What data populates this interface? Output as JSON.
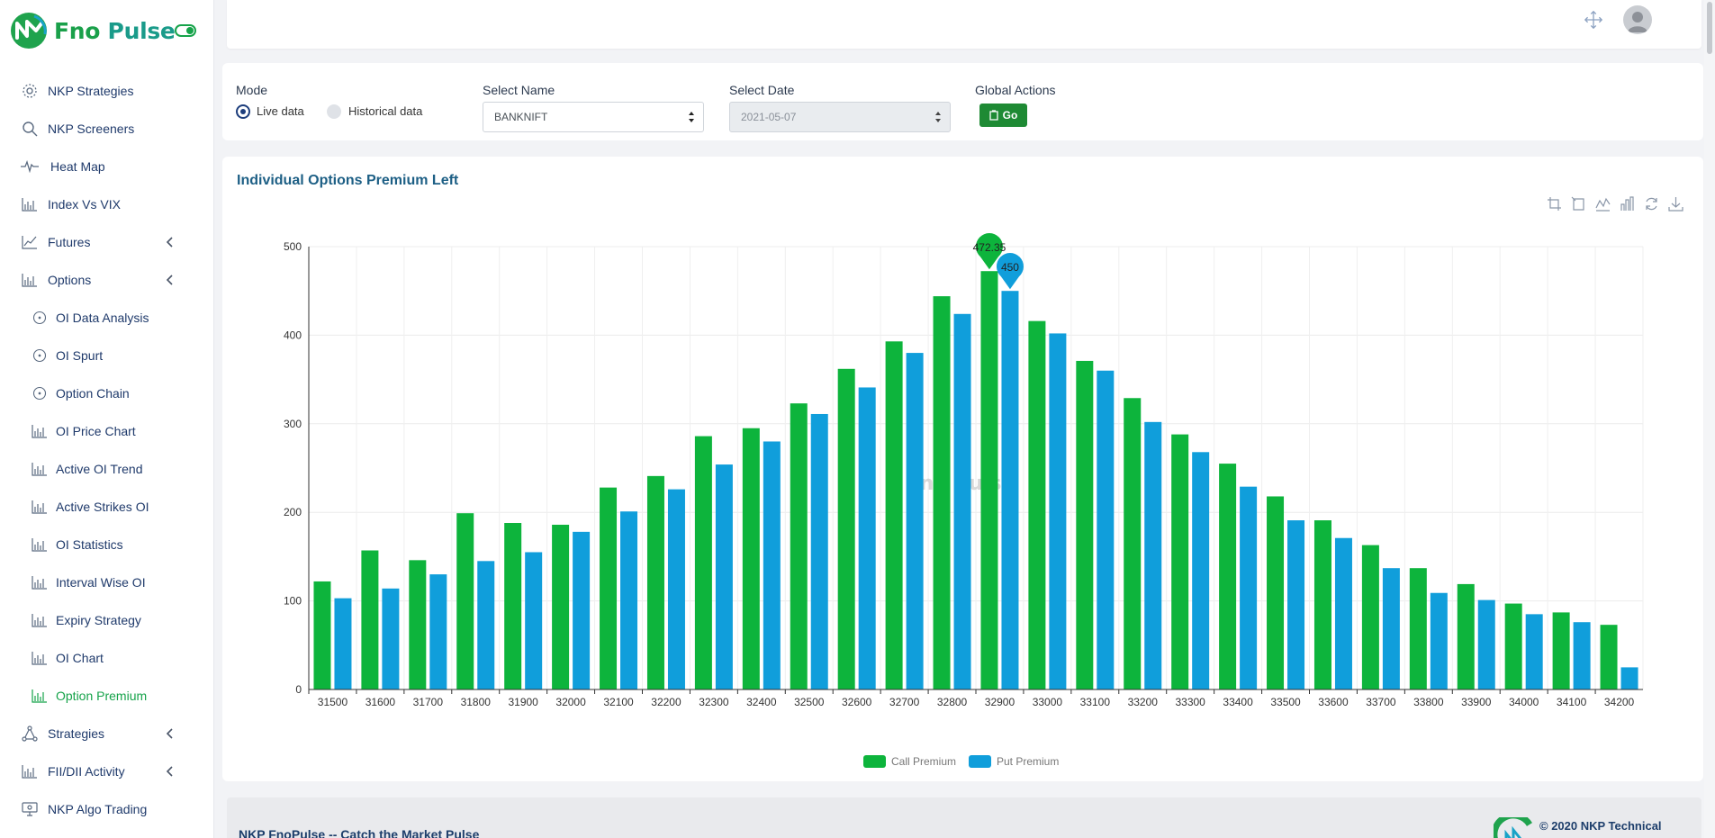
{
  "brand": {
    "name_a": "Fno",
    "name_b": " Pulse"
  },
  "sidebar": {
    "items": [
      {
        "label": "NKP Strategies",
        "icon": "gear-icon"
      },
      {
        "label": "NKP Screeners",
        "icon": "search-icon"
      },
      {
        "label": "Heat Map",
        "icon": "pulse-icon"
      },
      {
        "label": "Index Vs VIX",
        "icon": "bar-chart-icon"
      },
      {
        "label": "Futures",
        "icon": "line-chart-icon",
        "expandable": true
      },
      {
        "label": "Options",
        "icon": "bar-chart-icon",
        "expandable": true
      },
      {
        "label": "OI Data Analysis",
        "icon": "circle-icon",
        "sub": true
      },
      {
        "label": "OI Spurt",
        "icon": "circle-icon",
        "sub": true
      },
      {
        "label": "Option Chain",
        "icon": "circle-icon",
        "sub": true
      },
      {
        "label": "OI Price Chart",
        "icon": "bar-chart-icon",
        "sub": true
      },
      {
        "label": "Active OI Trend",
        "icon": "bar-chart-icon",
        "sub": true
      },
      {
        "label": "Active Strikes OI",
        "icon": "bar-chart-icon",
        "sub": true
      },
      {
        "label": "OI Statistics",
        "icon": "bar-chart-icon",
        "sub": true
      },
      {
        "label": "Interval Wise OI",
        "icon": "bar-chart-icon",
        "sub": true
      },
      {
        "label": "Expiry Strategy",
        "icon": "bar-chart-icon",
        "sub": true
      },
      {
        "label": "OI Chart",
        "icon": "bar-chart-icon",
        "sub": true
      },
      {
        "label": "Option Premium",
        "icon": "bar-chart-icon",
        "sub": true,
        "active": true
      },
      {
        "label": "Strategies",
        "icon": "network-icon",
        "expandable": true
      },
      {
        "label": "FII/DII Activity",
        "icon": "bar-chart-icon",
        "expandable": true
      },
      {
        "label": "NKP Algo Trading",
        "icon": "monitor-icon"
      }
    ]
  },
  "filters": {
    "mode_label": "Mode",
    "live_label": "Live data",
    "historical_label": "Historical data",
    "name_label": "Select Name",
    "name_value": "BANKNIFT",
    "date_label": "Select Date",
    "date_value": "2021-05-07",
    "actions_label": "Global Actions",
    "go_label": "Go"
  },
  "chart": {
    "title": "Individual Options Premium Left",
    "watermark": "Fno Pulse"
  },
  "chart_data": {
    "type": "bar",
    "categories": [
      "31500",
      "31600",
      "31700",
      "31800",
      "31900",
      "32000",
      "32100",
      "32200",
      "32300",
      "32400",
      "32500",
      "32600",
      "32700",
      "32800",
      "32900",
      "33000",
      "33100",
      "33200",
      "33300",
      "33400",
      "33500",
      "33600",
      "33700",
      "33800",
      "33900",
      "34000",
      "34100",
      "34200"
    ],
    "series": [
      {
        "name": "Call Premium",
        "color": "#0db43c",
        "values": [
          122,
          157,
          146,
          199,
          188,
          186,
          228,
          241,
          286,
          295,
          323,
          362,
          393,
          444,
          472.35,
          416,
          371,
          329,
          288,
          255,
          218,
          191,
          163,
          137,
          119,
          97,
          87,
          73
        ]
      },
      {
        "name": "Put Premium",
        "color": "#109edb",
        "values": [
          103,
          114,
          130,
          145,
          155,
          178,
          201,
          226,
          254,
          280,
          311,
          341,
          380,
          424,
          450,
          402,
          360,
          302,
          268,
          229,
          191,
          171,
          137,
          109,
          101,
          85,
          76,
          25
        ]
      }
    ],
    "markers": [
      {
        "series": "Call Premium",
        "category": "32900",
        "label": "472.35"
      },
      {
        "series": "Put Premium",
        "category": "32900",
        "label": "450"
      }
    ],
    "y_ticks": [
      "0",
      "100",
      "200",
      "300",
      "400",
      "500"
    ],
    "ylim": [
      0,
      500
    ],
    "grid": true,
    "legend": "bottom-center"
  },
  "footer": {
    "text": "NKP FnoPulse -- Catch the Market Pulse",
    "copyright": "© 2020 NKP Technical"
  }
}
